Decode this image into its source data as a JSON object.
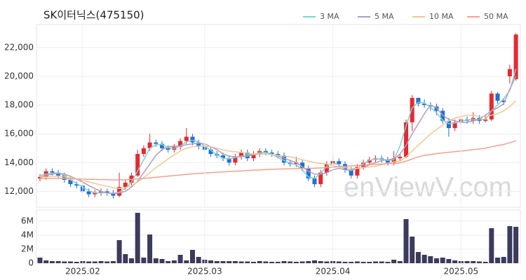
{
  "chart_data": [
    {
      "type": "candlestick",
      "title": "SK이터닉스(475150)",
      "watermark": "enViewV.com",
      "up_color": "#e8272f",
      "down_color": "#1f6fd6",
      "grid": true,
      "ylim": [
        10900,
        23600
      ],
      "yticks": [
        {
          "value": 12000,
          "label": "12,000"
        },
        {
          "value": 14000,
          "label": "14,000"
        },
        {
          "value": 16000,
          "label": "16,000"
        },
        {
          "value": 18000,
          "label": "18,000"
        },
        {
          "value": 20000,
          "label": "20,000"
        },
        {
          "value": 22000,
          "label": "22,000"
        }
      ],
      "open": [
        12900,
        13000,
        13400,
        13300,
        13100,
        12800,
        12500,
        12400,
        12000,
        11800,
        11900,
        12000,
        11900,
        11700,
        12300,
        12600,
        13100,
        14600,
        15000,
        15400,
        15300,
        15000,
        14900,
        15100,
        15500,
        15800,
        15400,
        15100,
        14900,
        14600,
        14500,
        14300,
        14000,
        14400,
        14700,
        14300,
        14600,
        14800,
        14700,
        14600,
        14500,
        14000,
        13900,
        14000,
        13600,
        12900,
        12500,
        13300,
        13900,
        14100,
        13900,
        13500,
        13100,
        13700,
        14000,
        14200,
        14300,
        14200,
        14000,
        14300,
        14400,
        16800,
        18500,
        18100,
        18000,
        17900,
        17600,
        16900,
        16400,
        16800,
        17000,
        16900,
        17100,
        16900,
        17000,
        18800,
        18300,
        20000,
        19800
      ],
      "high": [
        13200,
        13600,
        13600,
        13500,
        13300,
        13000,
        12700,
        12600,
        12200,
        12100,
        12200,
        12200,
        12100,
        13300,
        12800,
        13300,
        14900,
        15200,
        16000,
        15600,
        15500,
        15200,
        15300,
        15700,
        16400,
        16000,
        15600,
        15100,
        15100,
        14800,
        14700,
        14500,
        14600,
        14900,
        14900,
        14800,
        15000,
        15000,
        14900,
        14800,
        14700,
        14200,
        14400,
        14200,
        13800,
        13100,
        13500,
        14100,
        14600,
        14300,
        14100,
        13700,
        13900,
        14200,
        14400,
        14500,
        14500,
        14400,
        14800,
        14600,
        17000,
        18700,
        18500,
        18400,
        18200,
        18100,
        17800,
        17100,
        17000,
        17200,
        17200,
        17500,
        17300,
        17300,
        19000,
        18900,
        18500,
        20800,
        23000
      ],
      "low": [
        12700,
        12800,
        13100,
        12900,
        12600,
        12300,
        12200,
        11800,
        11600,
        11600,
        11700,
        11700,
        11500,
        11600,
        12100,
        12400,
        13000,
        14400,
        14800,
        15100,
        14800,
        14700,
        14700,
        14900,
        15300,
        15200,
        14900,
        14700,
        14400,
        14300,
        14100,
        13800,
        13800,
        14200,
        14100,
        14100,
        14400,
        14500,
        14400,
        14300,
        13800,
        13700,
        13700,
        13400,
        12700,
        12300,
        12300,
        13100,
        13700,
        13700,
        13300,
        12900,
        12900,
        13500,
        13800,
        14000,
        14000,
        13800,
        13800,
        14100,
        14300,
        16200,
        17900,
        17800,
        17600,
        17300,
        16700,
        15800,
        16200,
        16600,
        16700,
        16700,
        16700,
        16800,
        16900,
        18100,
        18000,
        19500,
        19700
      ],
      "close": [
        13000,
        13400,
        13300,
        13100,
        12800,
        12500,
        12400,
        12000,
        11800,
        11900,
        12000,
        11900,
        11700,
        12300,
        12600,
        13100,
        14600,
        15000,
        15400,
        15300,
        15000,
        14900,
        15100,
        15500,
        15800,
        15400,
        15100,
        14900,
        14600,
        14500,
        14300,
        14000,
        14400,
        14700,
        14300,
        14600,
        14800,
        14700,
        14600,
        14500,
        14000,
        13900,
        14000,
        13600,
        12900,
        12500,
        13300,
        13900,
        14100,
        13900,
        13500,
        13100,
        13700,
        14000,
        14200,
        14300,
        14200,
        14000,
        14300,
        14400,
        16800,
        18500,
        18100,
        18000,
        17900,
        17600,
        16900,
        16400,
        16800,
        17000,
        16900,
        17100,
        16900,
        17000,
        18800,
        18300,
        18200,
        20500,
        22900
      ],
      "series": [
        {
          "name": "3 MA",
          "color": "#7fd1d1",
          "values": [
            13100,
            13200,
            13250,
            13300,
            13100,
            12800,
            12550,
            12300,
            12050,
            11900,
            11900,
            11900,
            11850,
            11950,
            12200,
            12650,
            13400,
            14200,
            15000,
            15250,
            15250,
            15050,
            15000,
            15150,
            15450,
            15550,
            15450,
            15150,
            14850,
            14550,
            14300,
            14250,
            14350,
            14450,
            14550,
            14550,
            14700,
            14700,
            14600,
            14350,
            14150,
            13950,
            13850,
            13500,
            13000,
            12900,
            13250,
            13750,
            13950,
            13850,
            13500,
            13450,
            13600,
            13950,
            14150,
            14250,
            14250,
            14150,
            14200,
            15150,
            16550,
            17800,
            18200,
            18150,
            17850,
            17450,
            16950,
            16700,
            16750,
            16900,
            16950,
            17000,
            17000,
            17000,
            17600,
            18000,
            18450,
            19000,
            20500
          ]
        },
        {
          "name": "5 MA",
          "color": "#b49bc0",
          "values": [
            13000,
            13100,
            13200,
            13250,
            13200,
            13050,
            12850,
            12650,
            12400,
            12200,
            12000,
            11900,
            11850,
            11900,
            12000,
            12300,
            12700,
            13300,
            13900,
            14500,
            14900,
            15100,
            15150,
            15150,
            15250,
            15300,
            15350,
            15300,
            15100,
            14900,
            14600,
            14450,
            14400,
            14400,
            14450,
            14550,
            14600,
            14600,
            14550,
            14450,
            14300,
            14150,
            14000,
            13700,
            13400,
            13200,
            13200,
            13300,
            13500,
            13600,
            13500,
            13500,
            13600,
            13650,
            13850,
            14000,
            14150,
            14200,
            14250,
            14600,
            15200,
            16000,
            16700,
            17400,
            18000,
            17800,
            17300,
            17000,
            16900,
            16800,
            16800,
            16900,
            17000,
            17300,
            17600,
            17800,
            18100,
            19100,
            20000
          ]
        },
        {
          "name": "10 MA",
          "color": "#f0c890",
          "values": [
            13000,
            13000,
            13050,
            13050,
            13000,
            12950,
            12850,
            12750,
            12650,
            12550,
            12450,
            12350,
            12250,
            12200,
            12250,
            12400,
            12650,
            12950,
            13300,
            13650,
            13950,
            14250,
            14550,
            14800,
            15000,
            15100,
            15150,
            15150,
            15100,
            15000,
            14900,
            14800,
            14750,
            14700,
            14650,
            14600,
            14600,
            14600,
            14550,
            14500,
            14450,
            14400,
            14300,
            14200,
            14100,
            14000,
            13950,
            13900,
            13800,
            13700,
            13650,
            13600,
            13600,
            13650,
            13700,
            13750,
            13850,
            13950,
            14050,
            14100,
            14400,
            14800,
            15200,
            15600,
            16000,
            16300,
            16600,
            16900,
            17100,
            17200,
            17300,
            17300,
            17200,
            17200,
            17300,
            17400,
            17600,
            17900,
            18300
          ]
        },
        {
          "name": "50 MA",
          "color": "#f4a08f",
          "values": [
            12900,
            12900,
            12900,
            12900,
            12880,
            12870,
            12860,
            12850,
            12840,
            12830,
            12820,
            12810,
            12800,
            12800,
            12810,
            12830,
            12870,
            12900,
            12940,
            12980,
            13020,
            13060,
            13100,
            13140,
            13180,
            13220,
            13250,
            13280,
            13300,
            13330,
            13350,
            13380,
            13400,
            13420,
            13450,
            13470,
            13490,
            13510,
            13530,
            13550,
            13560,
            13570,
            13580,
            13590,
            13600,
            13610,
            13630,
            13650,
            13680,
            13710,
            13740,
            13770,
            13800,
            13830,
            13860,
            13880,
            13900,
            13920,
            13940,
            13980,
            14100,
            14250,
            14400,
            14500,
            14560,
            14620,
            14680,
            14720,
            14760,
            14800,
            14850,
            14900,
            14950,
            15000,
            15100,
            15180,
            15260,
            15380,
            15520
          ]
        }
      ]
    },
    {
      "type": "bar",
      "color": "#3d3b5c",
      "grid": true,
      "ylim": [
        0,
        7600000
      ],
      "yticks": [
        0,
        {
          "value": 2000000,
          "label": "2M"
        },
        {
          "value": 4000000,
          "label": "4M"
        },
        {
          "value": 6000000,
          "label": "6M"
        }
      ],
      "categories": [
        null,
        null,
        null,
        null,
        null,
        null,
        null,
        "2025.02",
        null,
        null,
        null,
        null,
        null,
        null,
        null,
        null,
        null,
        null,
        null,
        null,
        null,
        null,
        null,
        null,
        null,
        null,
        null,
        "2025.03",
        null,
        null,
        null,
        null,
        null,
        null,
        null,
        null,
        null,
        null,
        null,
        null,
        null,
        null,
        null,
        null,
        null,
        null,
        null,
        null,
        "2025.04",
        null,
        null,
        null,
        null,
        null,
        null,
        null,
        null,
        null,
        null,
        null,
        null,
        null,
        null,
        null,
        null,
        null,
        null,
        null,
        null,
        "2025.05",
        null,
        null,
        null,
        null,
        null,
        null,
        null,
        null,
        null
      ],
      "values": [
        800000,
        400000,
        300000,
        300000,
        250000,
        250000,
        200000,
        300000,
        250000,
        250000,
        300000,
        250000,
        300000,
        3300000,
        1300000,
        700000,
        7200000,
        800000,
        4100000,
        700000,
        600000,
        300000,
        400000,
        1200000,
        400000,
        1900000,
        900000,
        500000,
        400000,
        300000,
        300000,
        300000,
        300000,
        250000,
        250000,
        200000,
        300000,
        250000,
        200000,
        200000,
        300000,
        250000,
        200000,
        250000,
        300000,
        400000,
        300000,
        250000,
        300000,
        250000,
        200000,
        200000,
        250000,
        200000,
        200000,
        250000,
        250000,
        200000,
        500000,
        300000,
        6300000,
        3800000,
        1600000,
        1200000,
        1000000,
        700000,
        800000,
        600000,
        400000,
        300000,
        300000,
        300000,
        250000,
        200000,
        5000000,
        800000,
        900000,
        5300000,
        5200000
      ]
    }
  ]
}
